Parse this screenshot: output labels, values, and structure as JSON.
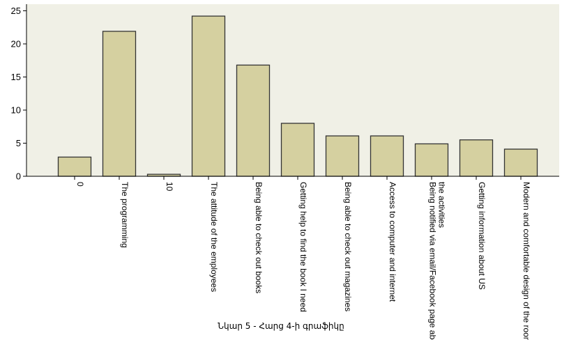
{
  "chart_data": {
    "type": "bar",
    "categories": [
      [
        "0"
      ],
      [
        "The programming"
      ],
      [
        "10"
      ],
      [
        "The attitude of the employees"
      ],
      [
        "Being able to check out books"
      ],
      [
        "Getting help to find the book I need"
      ],
      [
        "Being able to check out magazines"
      ],
      [
        "Access to computer and internet"
      ],
      [
        "Being notified via email/Facebook page abou",
        "the activities"
      ],
      [
        "Getting information about US"
      ],
      [
        "Modern and comfortable design of the room."
      ]
    ],
    "values": [
      2.9,
      21.9,
      0.3,
      24.2,
      16.8,
      8.0,
      6.1,
      6.1,
      4.9,
      5.5,
      4.1
    ],
    "ylim": [
      0,
      26
    ],
    "yticks": [
      0,
      5,
      10,
      15,
      20,
      25
    ],
    "grid": false,
    "colors": {
      "plot_bg": "#f0f0e6",
      "bar_fill": "#d5d0a0",
      "bar_stroke": "#333333",
      "axis": "#000000"
    }
  },
  "caption": "Նկար 5 - Հարց 4-ի գրաֆիկը"
}
